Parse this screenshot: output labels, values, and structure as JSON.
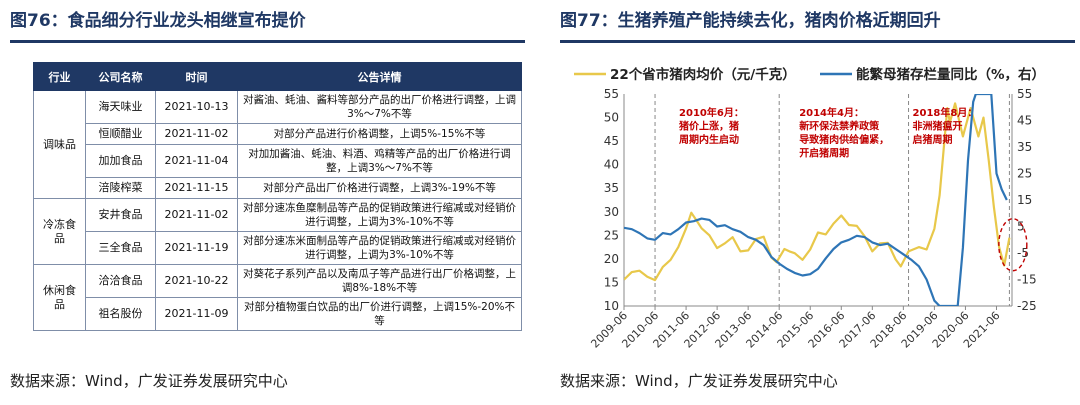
{
  "left_panel": {
    "title": "图76：食品细分行业龙头相继宣布提价",
    "source": "数据来源：Wind，广发证券发展研究中心",
    "table": {
      "headers": [
        "行业",
        "公司名称",
        "时间",
        "公告详情"
      ],
      "groups": [
        {
          "industry": "调味品",
          "rows": [
            {
              "company": "海天味业",
              "date": "2021-10-13",
              "detail": "对酱油、蚝油、酱料等部分产品的出厂价格进行调整，上调3%～7%不等"
            },
            {
              "company": "恒顺醋业",
              "date": "2021-11-02",
              "detail": "对部分产品进行价格调整，上调5%-15%不等"
            },
            {
              "company": "加加食品",
              "date": "2021-11-04",
              "detail": "对加加酱油、蚝油、料酒、鸡精等产品的出厂价格进行调整，上调3%～7%不等"
            },
            {
              "company": "涪陵榨菜",
              "date": "2021-11-15",
              "detail": "对部分产品出厂价格进行调整，上调3%-19%不等"
            }
          ]
        },
        {
          "industry": "冷冻食品",
          "rows": [
            {
              "company": "安井食品",
              "date": "2021-11-02",
              "detail": "对部分速冻鱼糜制品等产品的促销政策进行缩减或对经销价进行调整，上调为3%-10%不等"
            },
            {
              "company": "三全食品",
              "date": "2021-11-19",
              "detail": "对部分速冻米面制品等产品的促销政策进行缩减或对经销价进行调整，上调为3%-10%不等"
            }
          ]
        },
        {
          "industry": "休闲食品",
          "rows": [
            {
              "company": "洽洽食品",
              "date": "2021-10-22",
              "detail": "对葵花子系列产品以及南瓜子等产品进行出厂价格调整，上调8%-18%不等"
            },
            {
              "company": "祖名股份",
              "date": "2021-11-09",
              "detail": "对部分植物蛋白饮品的出厂价进行调整，上调15%-20%不等"
            }
          ]
        }
      ]
    }
  },
  "right_panel": {
    "title": "图77：生猪养殖产能持续去化，猪肉价格近期回升",
    "source": "数据来源：Wind，广发证券发展研究中心",
    "chart_data": {
      "type": "line",
      "title": "图77：生猪养殖产能持续去化，猪肉价格近期回升",
      "legend_placement": "top",
      "x_ticks": [
        "2009-06",
        "2010-06",
        "2011-06",
        "2012-06",
        "2013-06",
        "2014-06",
        "2015-06",
        "2016-06",
        "2017-06",
        "2018-06",
        "2019-06",
        "2020-06",
        "2021-06"
      ],
      "x_range": [
        "2009-06",
        "2021-12"
      ],
      "y_left": {
        "range": [
          10,
          55
        ],
        "ticks": [
          10,
          15,
          20,
          25,
          30,
          35,
          40,
          45,
          50,
          55
        ]
      },
      "y_right": {
        "range": [
          -25,
          55
        ],
        "ticks": [
          -25,
          -15,
          -5,
          5,
          15,
          25,
          35,
          45,
          55
        ],
        "tick_labels": [
          "-25",
          "-15",
          "-5",
          "5",
          "15",
          "25",
          "35",
          "45",
          "55"
        ]
      },
      "series": [
        {
          "name": "22个省市猪肉均价（元/千克）",
          "axis": "left",
          "color": "#e8c84a",
          "points": [
            [
              "2009-06",
              15.6
            ],
            [
              "2009-09",
              17.2
            ],
            [
              "2009-12",
              17.5
            ],
            [
              "2010-03",
              16.2
            ],
            [
              "2010-06",
              15.5
            ],
            [
              "2010-09",
              18.3
            ],
            [
              "2010-12",
              19.8
            ],
            [
              "2011-03",
              22.5
            ],
            [
              "2011-06",
              26.5
            ],
            [
              "2011-08",
              29.8
            ],
            [
              "2011-10",
              28.2
            ],
            [
              "2011-12",
              26.5
            ],
            [
              "2012-03",
              25.0
            ],
            [
              "2012-06",
              22.3
            ],
            [
              "2012-09",
              23.3
            ],
            [
              "2012-12",
              24.6
            ],
            [
              "2013-03",
              21.6
            ],
            [
              "2013-06",
              21.8
            ],
            [
              "2013-09",
              24.2
            ],
            [
              "2013-12",
              24.7
            ],
            [
              "2014-03",
              20.3
            ],
            [
              "2014-05",
              19.3
            ],
            [
              "2014-08",
              22.1
            ],
            [
              "2014-10",
              21.6
            ],
            [
              "2014-12",
              21.2
            ],
            [
              "2015-03",
              19.8
            ],
            [
              "2015-06",
              22.0
            ],
            [
              "2015-09",
              25.6
            ],
            [
              "2015-12",
              25.2
            ],
            [
              "2016-03",
              27.5
            ],
            [
              "2016-06",
              29.2
            ],
            [
              "2016-09",
              27.2
            ],
            [
              "2016-12",
              27.0
            ],
            [
              "2017-03",
              24.8
            ],
            [
              "2017-06",
              21.6
            ],
            [
              "2017-09",
              23.3
            ],
            [
              "2017-12",
              23.4
            ],
            [
              "2018-03",
              19.9
            ],
            [
              "2018-05",
              18.4
            ],
            [
              "2018-08",
              21.6
            ],
            [
              "2018-12",
              22.5
            ],
            [
              "2019-03",
              22.0
            ],
            [
              "2019-06",
              26.4
            ],
            [
              "2019-08",
              33.5
            ],
            [
              "2019-11",
              52.0
            ],
            [
              "2019-12",
              49.0
            ],
            [
              "2020-02",
              53.0
            ],
            [
              "2020-05",
              46.0
            ],
            [
              "2020-08",
              52.0
            ],
            [
              "2020-11",
              46.0
            ],
            [
              "2021-01",
              50.0
            ],
            [
              "2021-03",
              41.0
            ],
            [
              "2021-05",
              31.0
            ],
            [
              "2021-07",
              22.5
            ],
            [
              "2021-09",
              18.6
            ],
            [
              "2021-11",
              24.5
            ]
          ]
        },
        {
          "name": "能繁母猪存栏量同比（%，右）",
          "axis": "right",
          "color": "#2e75b6",
          "points": [
            [
              "2009-06",
              4.5
            ],
            [
              "2009-09",
              4.0
            ],
            [
              "2009-12",
              2.5
            ],
            [
              "2010-03",
              0.5
            ],
            [
              "2010-06",
              0.0
            ],
            [
              "2010-09",
              2.5
            ],
            [
              "2010-12",
              2.0
            ],
            [
              "2011-03",
              4.0
            ],
            [
              "2011-06",
              6.5
            ],
            [
              "2011-09",
              7.0
            ],
            [
              "2011-12",
              8.0
            ],
            [
              "2012-03",
              7.5
            ],
            [
              "2012-06",
              5.0
            ],
            [
              "2012-09",
              5.5
            ],
            [
              "2012-12",
              4.0
            ],
            [
              "2013-03",
              3.0
            ],
            [
              "2013-06",
              1.0
            ],
            [
              "2013-09",
              0.0
            ],
            [
              "2013-12",
              -2.0
            ],
            [
              "2014-03",
              -6.5
            ],
            [
              "2014-06",
              -9.0
            ],
            [
              "2014-09",
              -11.0
            ],
            [
              "2014-12",
              -12.5
            ],
            [
              "2015-03",
              -13.5
            ],
            [
              "2015-06",
              -13.0
            ],
            [
              "2015-09",
              -11.0
            ],
            [
              "2015-12",
              -7.0
            ],
            [
              "2016-03",
              -3.5
            ],
            [
              "2016-06",
              -1.0
            ],
            [
              "2016-09",
              0.0
            ],
            [
              "2016-12",
              1.5
            ],
            [
              "2017-03",
              1.0
            ],
            [
              "2017-06",
              -1.0
            ],
            [
              "2017-09",
              -2.0
            ],
            [
              "2017-12",
              -1.5
            ],
            [
              "2018-03",
              -3.5
            ],
            [
              "2018-06",
              -5.5
            ],
            [
              "2018-09",
              -7.5
            ],
            [
              "2018-12",
              -10.0
            ],
            [
              "2019-03",
              -15.0
            ],
            [
              "2019-06",
              -23.0
            ],
            [
              "2019-08",
              -25.0
            ],
            [
              "2020-03",
              -25.0
            ],
            [
              "2020-05",
              -3.0
            ],
            [
              "2020-07",
              30.0
            ],
            [
              "2020-09",
              52.0
            ],
            [
              "2020-10",
              55.0
            ],
            [
              "2021-04",
              55.0
            ],
            [
              "2021-06",
              25.0
            ],
            [
              "2021-08",
              19.0
            ],
            [
              "2021-10",
              15.0
            ]
          ]
        }
      ],
      "dashed_vertical_lines": [
        "2010-06",
        "2014-06",
        "2018-08",
        "2021-11"
      ],
      "annotations": [
        {
          "lines": [
            "2010年6月：",
            "猪价上涨，猪",
            "周期内生启动"
          ],
          "color": "#c00000"
        },
        {
          "lines": [
            "2014年4月：",
            "新环保法禁养政策",
            "导致猪肉供给偏紧，",
            "开启猪周期"
          ],
          "color": "#c00000"
        },
        {
          "lines": [
            "2018年8月：",
            "非洲猪瘟开",
            "启猪周期"
          ],
          "color": "#c00000"
        }
      ],
      "highlight_circle": {
        "at": "2021-10",
        "color": "#c00000"
      }
    }
  }
}
